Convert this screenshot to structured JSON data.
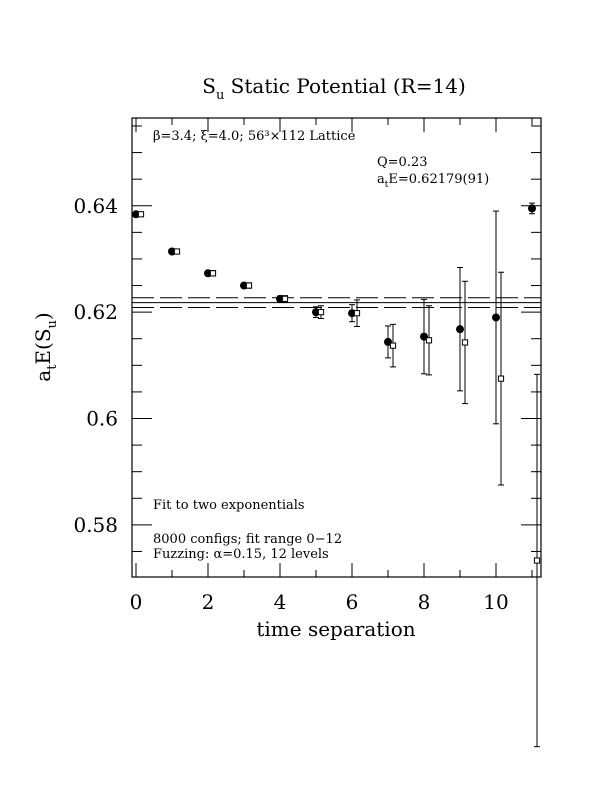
{
  "chart_data": {
    "type": "scatter",
    "title": "S",
    "title_sub": "u",
    "title_rest": " Static Potential (R=14)",
    "xlabel": "time separation",
    "ylabel_a": "a",
    "ylabel_t": "t",
    "ylabel_mid": "E(S",
    "ylabel_u": "u",
    "ylabel_end": ")",
    "xlim": [
      0,
      11
    ],
    "ylim": [
      0.5702,
      0.6565
    ],
    "x_ticks": [
      {
        "v": 0,
        "label": "0"
      },
      {
        "v": 2,
        "label": "2"
      },
      {
        "v": 4,
        "label": "4"
      },
      {
        "v": 6,
        "label": "6"
      },
      {
        "v": 8,
        "label": "8"
      },
      {
        "v": 10,
        "label": "10"
      }
    ],
    "y_ticks": [
      {
        "v": 0.58,
        "label": "0.58"
      },
      {
        "v": 0.6,
        "label": "0.6"
      },
      {
        "v": 0.62,
        "label": "0.62"
      },
      {
        "v": 0.64,
        "label": "0.64"
      }
    ],
    "fit": {
      "value": 0.62179,
      "error": 0.00091
    },
    "annotations": {
      "lattice": "β=3.4; ξ=4.0; 56³×112 Lattice",
      "q_value": "Q=0.23",
      "energy_prefix": "a",
      "energy_sub": "t",
      "energy_rest": "E=0.62179(91)",
      "fit_desc": "Fit to two exponentials",
      "configs": "8000 configs; fit range 0−12",
      "fuzzing": "Fuzzing: α=0.15, 12 levels"
    },
    "series": [
      {
        "marker": "filled-circle",
        "points": [
          {
            "x": 0,
            "y": 0.6384,
            "err": 0.0002
          },
          {
            "x": 1,
            "y": 0.6314,
            "err": 0.0003
          },
          {
            "x": 2,
            "y": 0.6273,
            "err": 0.0004
          },
          {
            "x": 3,
            "y": 0.625,
            "err": 0.0004
          },
          {
            "x": 4,
            "y": 0.6225,
            "err": 0.0005
          },
          {
            "x": 5,
            "y": 0.62,
            "err": 0.001
          },
          {
            "x": 6,
            "y": 0.6198,
            "err": 0.0016
          },
          {
            "x": 7,
            "y": 0.6144,
            "err": 0.003
          },
          {
            "x": 8,
            "y": 0.6154,
            "err": 0.007
          },
          {
            "x": 9,
            "y": 0.6168,
            "err": 0.0116
          },
          {
            "x": 10,
            "y": 0.619,
            "err": 0.02
          },
          {
            "x": 11,
            "y": 0.6395,
            "err": 0.001
          }
        ]
      },
      {
        "marker": "open-square",
        "points": [
          {
            "x": 0,
            "y": 0.6384,
            "err": 0.0003
          },
          {
            "x": 1,
            "y": 0.6314,
            "err": 0.0004
          },
          {
            "x": 2,
            "y": 0.6273,
            "err": 0.0005
          },
          {
            "x": 3,
            "y": 0.625,
            "err": 0.0005
          },
          {
            "x": 4,
            "y": 0.6225,
            "err": 0.0006
          },
          {
            "x": 5,
            "y": 0.62,
            "err": 0.0012
          },
          {
            "x": 6,
            "y": 0.6198,
            "err": 0.0025
          },
          {
            "x": 7,
            "y": 0.6137,
            "err": 0.004
          },
          {
            "x": 8,
            "y": 0.6147,
            "err": 0.0065
          },
          {
            "x": 9,
            "y": 0.6143,
            "err": 0.0115
          },
          {
            "x": 10,
            "y": 0.6075,
            "err": 0.02
          },
          {
            "x": 11,
            "y": 0.5733,
            "err": 0.035
          }
        ]
      }
    ]
  }
}
